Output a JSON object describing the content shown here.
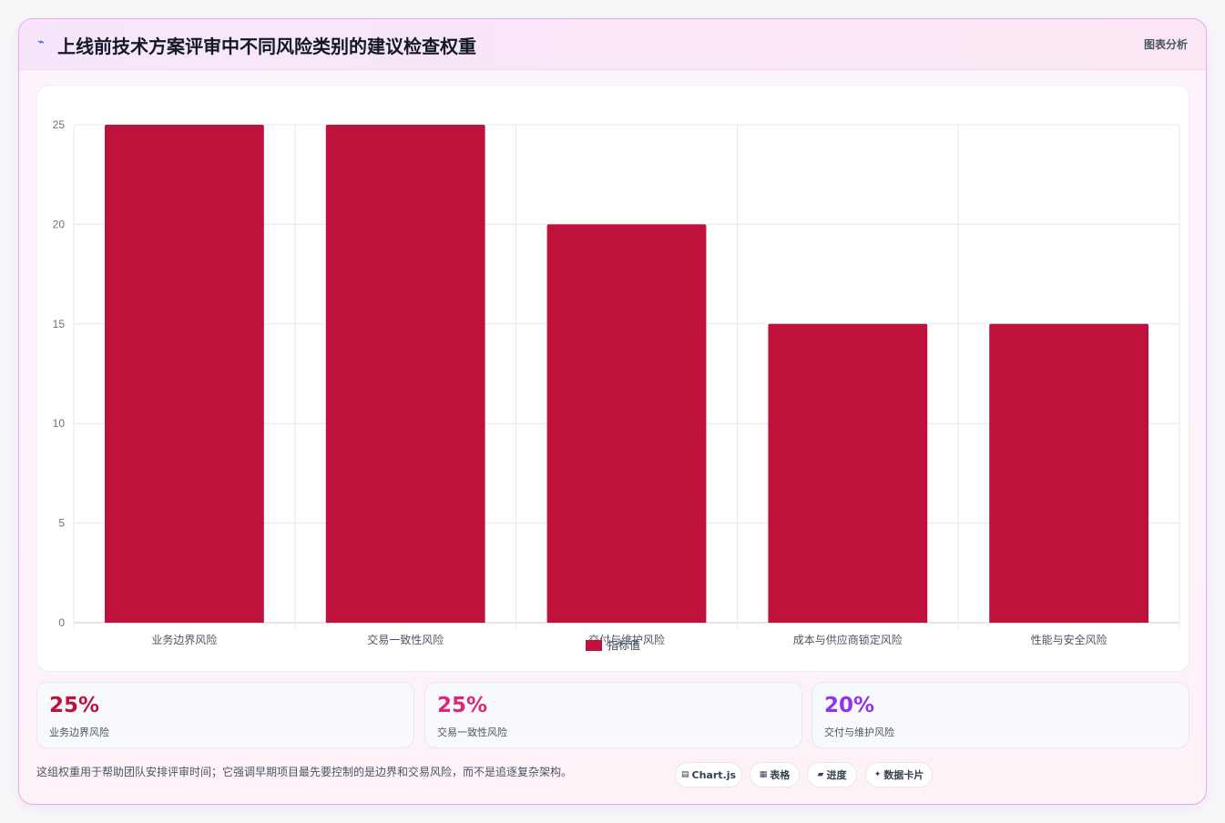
{
  "header": {
    "icon": "trend-line-icon",
    "title": "上线前技术方案评审中不同风险类别的建议检查权重",
    "tag": "图表分析"
  },
  "chart_data": {
    "type": "bar",
    "categories": [
      "业务边界风险",
      "交易一致性风险",
      "交付与维护风险",
      "成本与供应商锁定风险",
      "性能与安全风险"
    ],
    "series": [
      {
        "name": "指标值",
        "values": [
          25,
          25,
          20,
          15,
          15
        ],
        "color": "#be123c"
      }
    ],
    "ylim": [
      0,
      25
    ],
    "yticks": [
      0,
      5,
      10,
      15,
      20,
      25
    ],
    "grid": true,
    "legend_position": "bottom"
  },
  "stats": [
    {
      "value": "25%",
      "label": "业务边界风险",
      "color": "#be123c"
    },
    {
      "value": "25%",
      "label": "交易一致性风险",
      "color": "#db2777"
    },
    {
      "value": "20%",
      "label": "交付与维护风险",
      "color": "#9333ea"
    }
  ],
  "footnote": "这组权重用于帮助团队安排评审时间；它强调早期项目最先要控制的是边界和交易风险，而不是追逐复杂架构。",
  "pills": [
    {
      "icon": "chart-icon",
      "glyph": "▤",
      "label": "Chart.js"
    },
    {
      "icon": "table-icon",
      "glyph": "▦",
      "label": "表格"
    },
    {
      "icon": "progress-icon",
      "glyph": "▰",
      "label": "进度"
    },
    {
      "icon": "sparkle-icon",
      "glyph": "✦",
      "label": "数据卡片"
    }
  ]
}
